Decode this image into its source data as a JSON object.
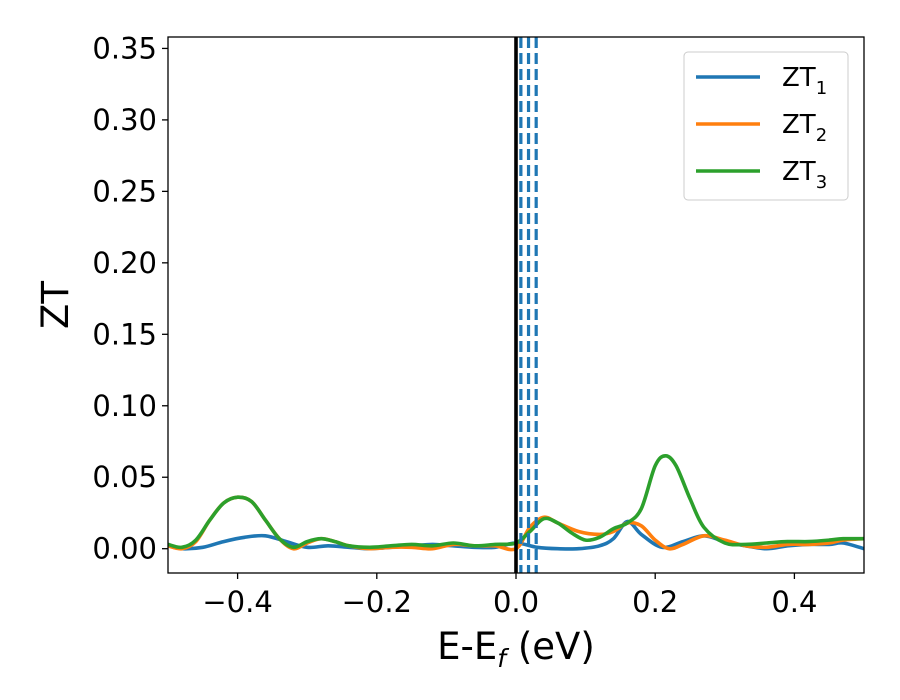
{
  "chart_data": {
    "type": "line",
    "xlabel": {
      "main": "E-E",
      "sub": "f",
      "suffix": " (eV)"
    },
    "ylabel": "ZT",
    "xlim": [
      -0.5,
      0.5
    ],
    "ylim": [
      -0.017,
      0.358
    ],
    "xticks": [
      -0.4,
      -0.2,
      0.0,
      0.2,
      0.4
    ],
    "xtick_labels": [
      "−0.4",
      "−0.2",
      "0.0",
      "0.2",
      "0.4"
    ],
    "yticks": [
      0.0,
      0.05,
      0.1,
      0.15,
      0.2,
      0.25,
      0.3,
      0.35
    ],
    "ytick_labels": [
      "0.00",
      "0.05",
      "0.10",
      "0.15",
      "0.20",
      "0.25",
      "0.30",
      "0.35"
    ],
    "grid": false,
    "legend_position": "top-right",
    "fermi_line": {
      "x": 0.0,
      "color": "#000000"
    },
    "dashed_lines": {
      "x": [
        0.007,
        0.018,
        0.029
      ],
      "color": "#1f77b4"
    },
    "series": [
      {
        "name": "ZT",
        "sub": "1",
        "color": "#1f77b4",
        "x": [
          -0.5,
          -0.48,
          -0.45,
          -0.42,
          -0.39,
          -0.36,
          -0.33,
          -0.3,
          -0.27,
          -0.24,
          -0.21,
          -0.18,
          -0.15,
          -0.12,
          -0.09,
          -0.06,
          -0.03,
          0.0,
          0.03,
          0.06,
          0.09,
          0.12,
          0.14,
          0.16,
          0.18,
          0.21,
          0.24,
          0.27,
          0.3,
          0.33,
          0.36,
          0.39,
          0.42,
          0.45,
          0.47,
          0.5
        ],
        "y": [
          0.002,
          0.0,
          0.001,
          0.005,
          0.008,
          0.009,
          0.005,
          0.001,
          0.002,
          0.001,
          0.0,
          0.001,
          0.002,
          0.003,
          0.002,
          0.001,
          0.001,
          0.004,
          0.001,
          0.0,
          0.0,
          0.002,
          0.007,
          0.019,
          0.01,
          0.001,
          0.005,
          0.009,
          0.005,
          0.002,
          0.0,
          0.002,
          0.003,
          0.003,
          0.004,
          0.0
        ]
      },
      {
        "name": "ZT",
        "sub": "2",
        "color": "#ff7f0e",
        "x": [
          -0.5,
          -0.48,
          -0.46,
          -0.44,
          -0.42,
          -0.4,
          -0.38,
          -0.36,
          -0.34,
          -0.32,
          -0.3,
          -0.28,
          -0.26,
          -0.24,
          -0.21,
          -0.18,
          -0.15,
          -0.12,
          -0.09,
          -0.06,
          -0.03,
          0.0,
          0.02,
          0.04,
          0.06,
          0.09,
          0.12,
          0.14,
          0.16,
          0.18,
          0.2,
          0.22,
          0.24,
          0.27,
          0.3,
          0.33,
          0.36,
          0.39,
          0.42,
          0.45,
          0.47,
          0.5
        ],
        "y": [
          0.002,
          0.0,
          0.005,
          0.02,
          0.032,
          0.036,
          0.033,
          0.02,
          0.007,
          0.0,
          0.004,
          0.007,
          0.005,
          0.002,
          0.0,
          0.001,
          0.001,
          0.0,
          0.003,
          0.002,
          0.002,
          0.0,
          0.015,
          0.022,
          0.018,
          0.012,
          0.01,
          0.012,
          0.018,
          0.016,
          0.006,
          0.0,
          0.003,
          0.009,
          0.006,
          0.002,
          0.001,
          0.003,
          0.003,
          0.004,
          0.006,
          0.007
        ]
      },
      {
        "name": "ZT",
        "sub": "3",
        "color": "#2ca02c",
        "x": [
          -0.5,
          -0.48,
          -0.46,
          -0.44,
          -0.42,
          -0.4,
          -0.38,
          -0.36,
          -0.34,
          -0.32,
          -0.3,
          -0.28,
          -0.26,
          -0.24,
          -0.21,
          -0.18,
          -0.15,
          -0.12,
          -0.09,
          -0.06,
          -0.03,
          0.0,
          0.02,
          0.04,
          0.06,
          0.08,
          0.1,
          0.12,
          0.14,
          0.16,
          0.18,
          0.2,
          0.215,
          0.23,
          0.25,
          0.27,
          0.3,
          0.33,
          0.36,
          0.39,
          0.42,
          0.45,
          0.47,
          0.5
        ],
        "y": [
          0.003,
          0.001,
          0.006,
          0.02,
          0.032,
          0.036,
          0.033,
          0.02,
          0.007,
          0.001,
          0.005,
          0.007,
          0.005,
          0.002,
          0.001,
          0.002,
          0.003,
          0.002,
          0.004,
          0.002,
          0.003,
          0.004,
          0.012,
          0.021,
          0.018,
          0.011,
          0.006,
          0.008,
          0.014,
          0.018,
          0.028,
          0.058,
          0.065,
          0.058,
          0.035,
          0.015,
          0.004,
          0.003,
          0.004,
          0.005,
          0.005,
          0.006,
          0.007,
          0.007
        ]
      }
    ]
  }
}
